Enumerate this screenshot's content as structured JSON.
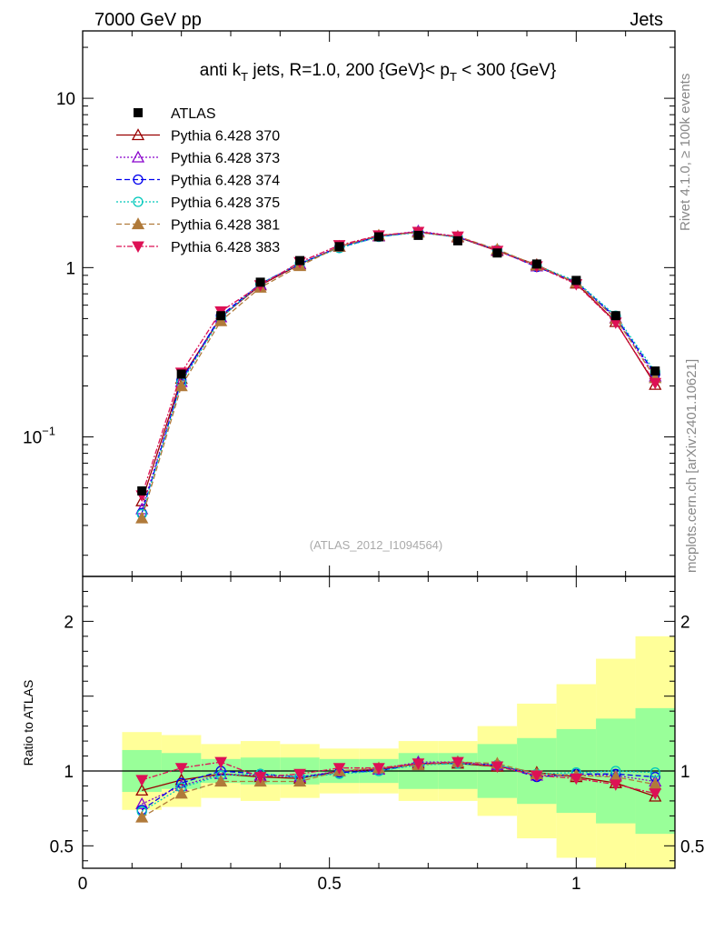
{
  "header": {
    "left": "7000 GeV pp",
    "right": "Jets"
  },
  "side_labels": {
    "rivet": "Rivet 4.1.0, ≥ 100k events",
    "mcplots": "mcplots.cern.ch [arXiv:2401.10621]"
  },
  "reference": "(ATLAS_2012_I1094564)",
  "chart_data": {
    "type": "line",
    "title": "anti k_T jets, R=1.0,  200 {GeV}< p_T < 300 {GeV}",
    "title_parts": {
      "a": "anti k",
      "a_sub": "T",
      "b": " jets, R=1.0,  200 {GeV}< p",
      "b_sub": "T",
      "c": " < 300 {GeV}"
    },
    "xlabel": "",
    "ylabel_ratio": "Ratio to ATLAS",
    "xlim": [
      0,
      1.2
    ],
    "ylim_main": [
      0.015,
      25
    ],
    "ylim_ratio": [
      0.35,
      2.3
    ],
    "y_scale_main": "log",
    "x_ticks": [
      {
        "value": 0,
        "label": "0"
      },
      {
        "value": 0.5,
        "label": "0.5"
      },
      {
        "value": 1,
        "label": "1"
      }
    ],
    "y_ticks_main": [
      {
        "value": 0.1,
        "base": "10",
        "exp": "−1"
      },
      {
        "value": 1,
        "base": "1",
        "exp": ""
      },
      {
        "value": 10,
        "base": "10",
        "exp": ""
      }
    ],
    "y_ticks_ratio": [
      {
        "value": 0.5,
        "label": "0.5"
      },
      {
        "value": 1,
        "label": "1"
      },
      {
        "value": 2,
        "label": "2"
      }
    ],
    "x": [
      0.12,
      0.2,
      0.28,
      0.36,
      0.44,
      0.52,
      0.6,
      0.68,
      0.76,
      0.84,
      0.92,
      1.0,
      1.08,
      1.16
    ],
    "bin_edges": [
      0.08,
      0.16,
      0.24,
      0.32,
      0.4,
      0.48,
      0.56,
      0.64,
      0.72,
      0.8,
      0.88,
      0.96,
      1.04,
      1.12,
      1.2
    ],
    "data": {
      "name": "ATLAS",
      "values": [
        0.048,
        0.235,
        0.52,
        0.82,
        1.1,
        1.33,
        1.52,
        1.55,
        1.44,
        1.22,
        1.05,
        0.84,
        0.52,
        0.245
      ],
      "band_green": [
        0.14,
        0.12,
        0.08,
        0.09,
        0.09,
        0.08,
        0.08,
        0.12,
        0.12,
        0.18,
        0.22,
        0.28,
        0.35,
        0.42
      ],
      "band_yellow": [
        0.26,
        0.24,
        0.18,
        0.2,
        0.18,
        0.15,
        0.15,
        0.2,
        0.2,
        0.3,
        0.45,
        0.58,
        0.75,
        0.9
      ]
    },
    "series": [
      {
        "name": "Pythia 6.428 370",
        "color": "#990000",
        "dash": "",
        "marker": "triangle-open",
        "ratio": [
          0.87,
          0.94,
          0.98,
          0.96,
          0.95,
          1.0,
          1.01,
          1.05,
          1.05,
          1.03,
          0.99,
          0.96,
          0.92,
          0.83
        ]
      },
      {
        "name": "Pythia 6.428 373",
        "color": "#8800cc",
        "dash": "2,2",
        "marker": "triangle-open",
        "ratio": [
          0.78,
          0.9,
          0.98,
          0.97,
          0.96,
          1.0,
          1.01,
          1.06,
          1.06,
          1.04,
          0.97,
          0.97,
          0.97,
          0.93
        ]
      },
      {
        "name": "Pythia 6.428 374",
        "color": "#0000ee",
        "dash": "6,3",
        "marker": "circle-open",
        "ratio": [
          0.74,
          0.92,
          1.0,
          0.98,
          0.96,
          0.99,
          1.0,
          1.05,
          1.05,
          1.04,
          0.96,
          0.98,
          0.98,
          0.96
        ]
      },
      {
        "name": "Pythia 6.428 375",
        "color": "#00c8bb",
        "dash": "2,2",
        "marker": "circle-open",
        "ratio": [
          0.73,
          0.89,
          0.97,
          0.98,
          0.96,
          0.98,
          1.0,
          1.04,
          1.05,
          1.04,
          0.98,
          0.99,
          1.0,
          0.99
        ]
      },
      {
        "name": "Pythia 6.428 381",
        "color": "#b07a3a",
        "dash": "6,3",
        "marker": "triangle-filled",
        "ratio": [
          0.69,
          0.85,
          0.93,
          0.93,
          0.93,
          1.0,
          1.02,
          1.04,
          1.06,
          1.05,
          0.98,
          0.97,
          0.96,
          0.91
        ]
      },
      {
        "name": "Pythia 6.428 383",
        "color": "#dd1155",
        "dash": "6,2,2,2",
        "marker": "triangle-down-filled",
        "ratio": [
          0.94,
          1.02,
          1.06,
          0.96,
          0.98,
          1.02,
          1.02,
          1.05,
          1.06,
          1.03,
          0.97,
          0.95,
          0.91,
          0.85
        ]
      }
    ],
    "legend_position": "top-left"
  }
}
